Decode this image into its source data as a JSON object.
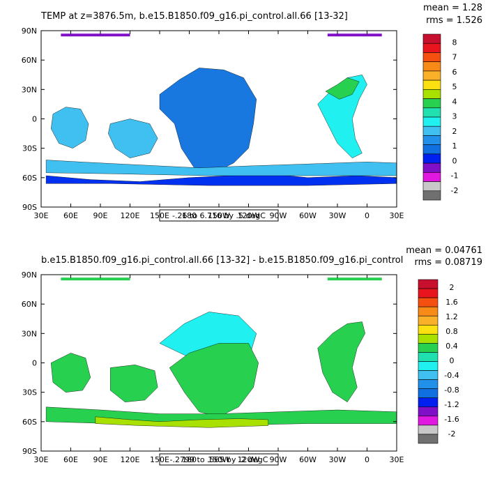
{
  "chart_data": [
    {
      "type": "heatmap",
      "title": "TEMP at z=3876.5m, b.e15.B1850.f09_g16.pi_control.all.66 [13-32]",
      "stats": [
        "mean = 1.28",
        "rms = 1.526"
      ],
      "xlabel": "",
      "ylabel": "",
      "x_ticks": [
        "30E",
        "60E",
        "90E",
        "120E",
        "150E",
        "180",
        "150W",
        "120W",
        "90W",
        "60W",
        "30W",
        "0",
        "30E"
      ],
      "y_ticks": [
        "90N",
        "60N",
        "30N",
        "0",
        "30S",
        "60S",
        "90S"
      ],
      "xlim": [
        30,
        390
      ],
      "ylim": [
        -90,
        90
      ],
      "contour_info": "-.26 to 6.716 by .5 degC",
      "colorbar": {
        "labels": [
          "8",
          "7",
          "6",
          "5",
          "4",
          "3",
          "2",
          "1",
          "0",
          "-1",
          "-2"
        ],
        "colors": [
          "#c8102e",
          "#e8141e",
          "#f55010",
          "#f88a18",
          "#fbb02a",
          "#fde010",
          "#a8e000",
          "#28d050",
          "#20e0b0",
          "#20f0f0",
          "#40c0f0",
          "#2090e8",
          "#1070e0",
          "#0020f0",
          "#8010c8",
          "#e018e0",
          "#c8c8c8",
          "#707070"
        ]
      },
      "fill_colors": {
        "land": "#ffffff",
        "ocean_main": "#1878e0",
        "ocean_cold": "#0030f0",
        "ocean_warm": "#40c0f0",
        "ocean_cyan": "#20f0f0",
        "ocean_green": "#28d050",
        "arctic": "#8010c8"
      }
    },
    {
      "type": "heatmap",
      "title": "b.e15.B1850.f09_g16.pi_control.all.66 [13-32] - b.e15.B1850.f09_g16.pi_control",
      "stats": [
        "mean = 0.04761",
        "rms = 0.08719"
      ],
      "xlabel": "",
      "ylabel": "",
      "x_ticks": [
        "30E",
        "60E",
        "90E",
        "120E",
        "150E",
        "180",
        "150W",
        "120W",
        "90W",
        "60W",
        "30W",
        "0",
        "30E"
      ],
      "y_ticks": [
        "90N",
        "60N",
        "30N",
        "0",
        "30S",
        "60S",
        "90S"
      ],
      "xlim": [
        30,
        390
      ],
      "ylim": [
        -90,
        90
      ],
      "contour_info": "-.2799 to .565 by .2 degC",
      "colorbar": {
        "labels": [
          "2",
          "1.6",
          "1.2",
          "0.8",
          "0.4",
          "0",
          "-0.4",
          "-0.8",
          "-1.2",
          "-1.6",
          "-2"
        ],
        "colors": [
          "#c8102e",
          "#e8141e",
          "#f55010",
          "#f88a18",
          "#fbb02a",
          "#fde010",
          "#a8e000",
          "#28d050",
          "#20e0b0",
          "#20f0f0",
          "#40c0f0",
          "#2090e8",
          "#1070e0",
          "#0020f0",
          "#8010c8",
          "#e018e0",
          "#c8c8c8",
          "#707070"
        ]
      },
      "fill_colors": {
        "land": "#ffffff",
        "ocean_main": "#28d050",
        "ocean_cyan": "#20f0f0",
        "ocean_lime": "#a8e000"
      }
    }
  ]
}
